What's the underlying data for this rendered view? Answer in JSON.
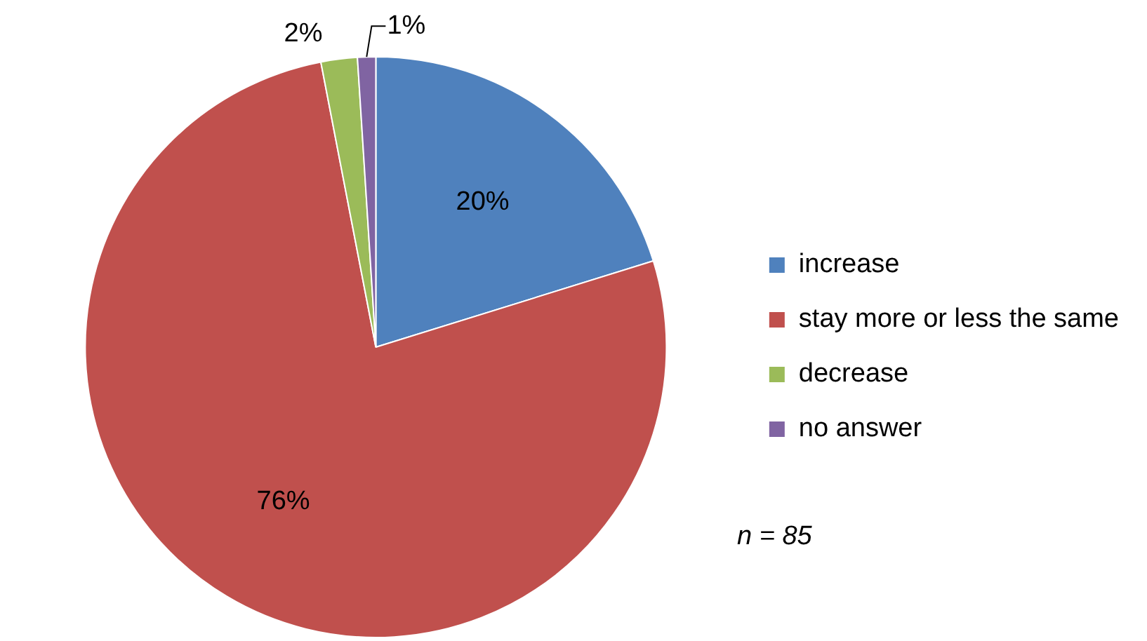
{
  "chart_data": {
    "type": "pie",
    "categories": [
      "increase",
      "stay more or less the same",
      "decrease",
      "no answer"
    ],
    "values": [
      20,
      76,
      2,
      1
    ],
    "colors": [
      "#4f81bd",
      "#c0504d",
      "#9bbb59",
      "#8064a2"
    ],
    "value_labels": [
      "20%",
      "76%",
      "2%",
      "1%"
    ],
    "legend": "right",
    "annotations": [
      "n = 85"
    ]
  }
}
